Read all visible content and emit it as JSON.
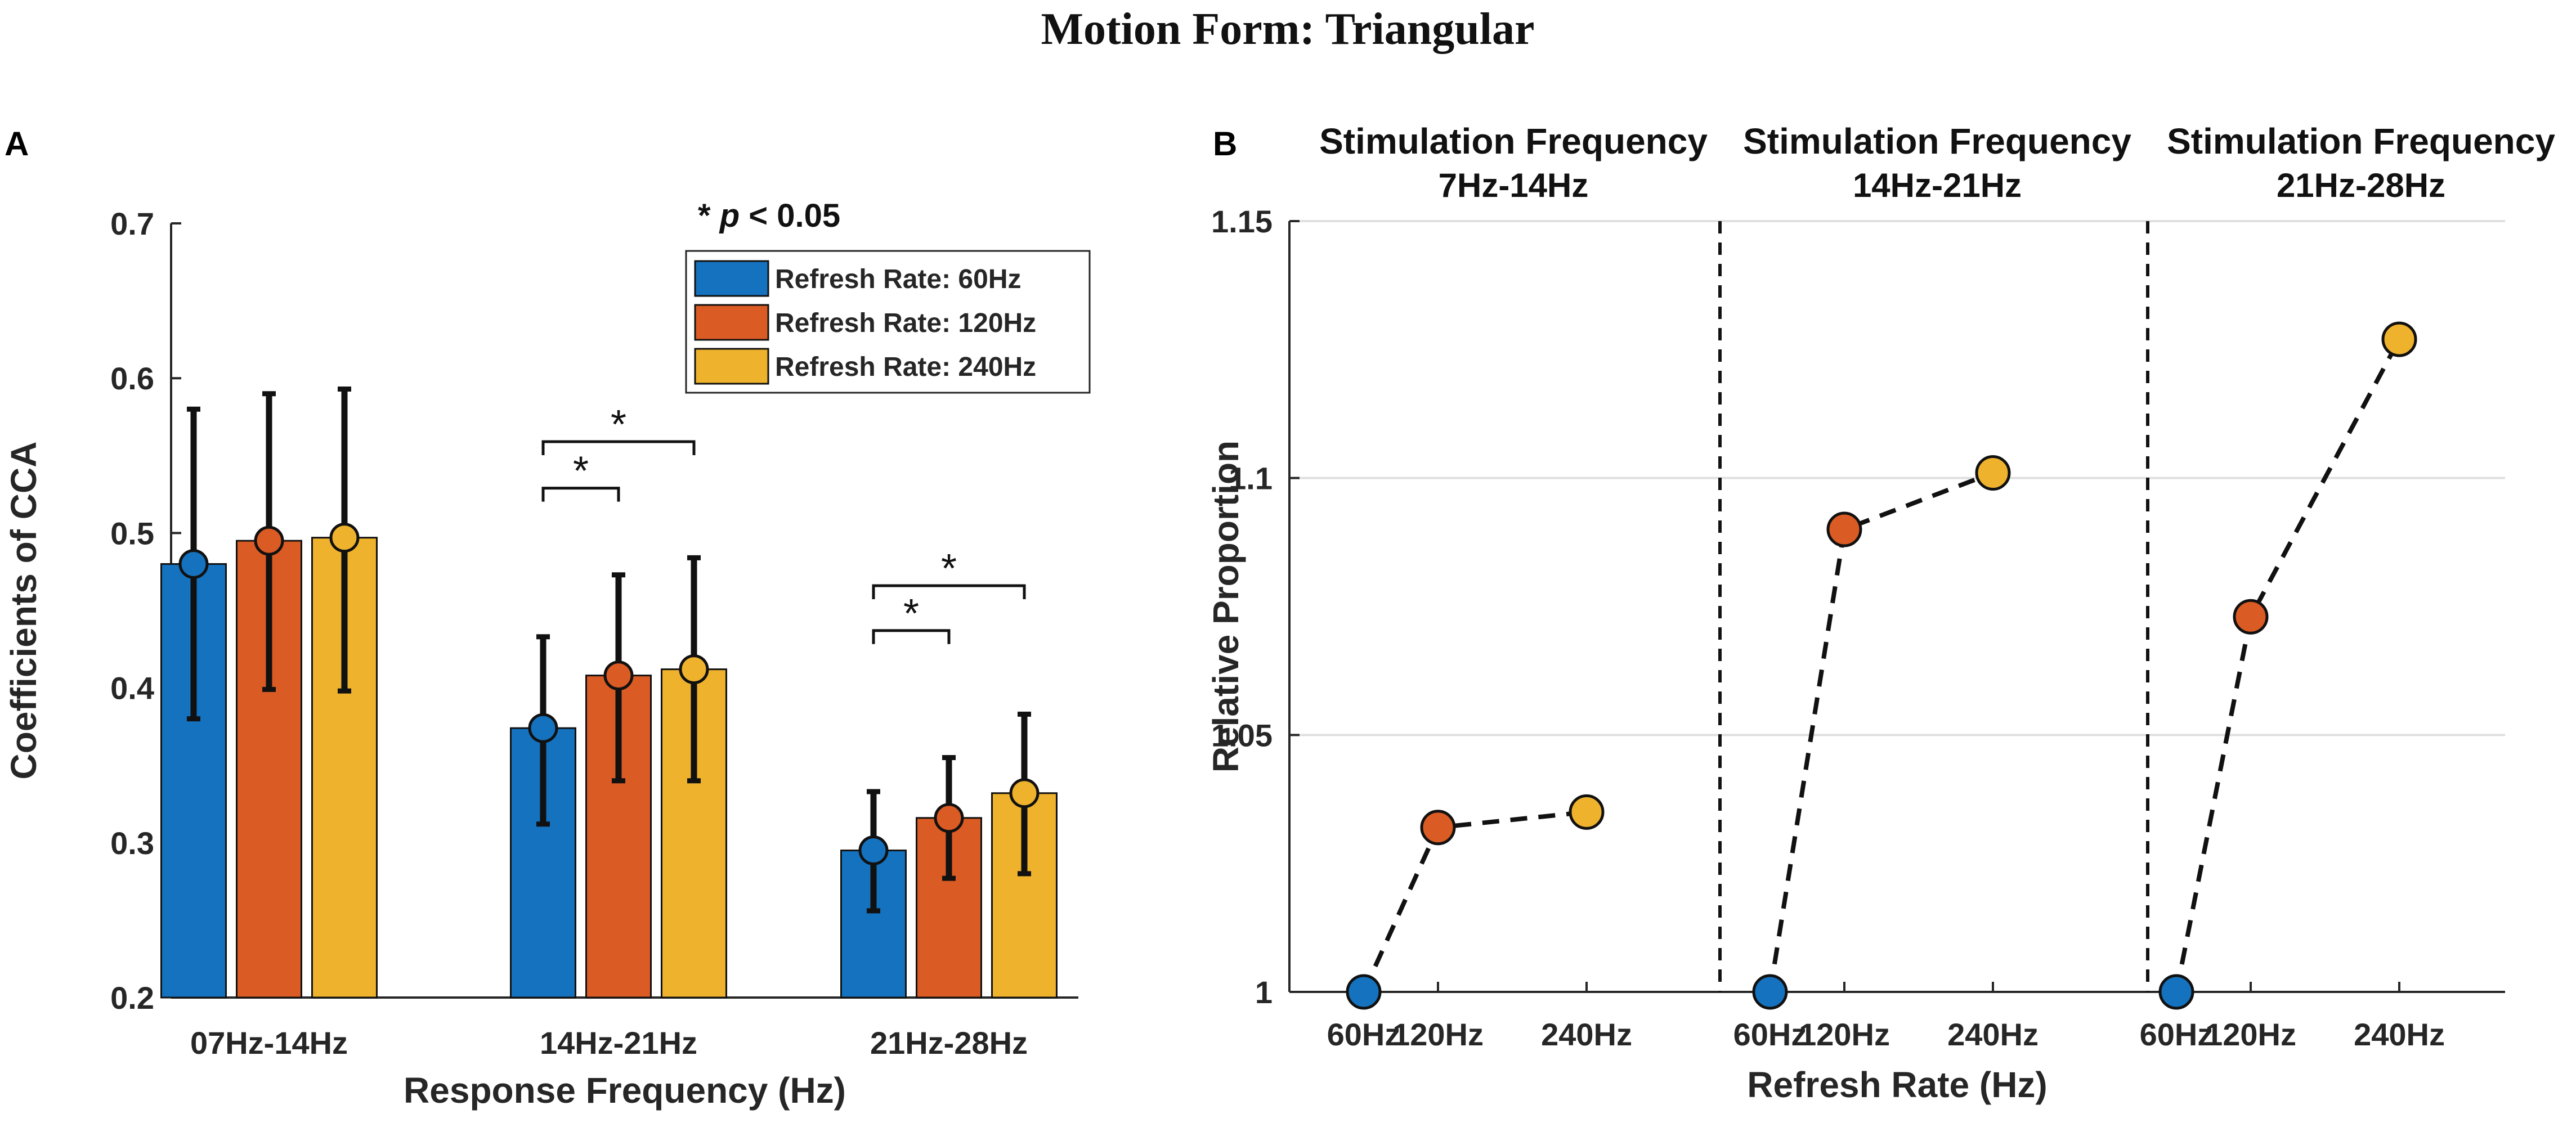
{
  "figure_title": "Motion Form: Triangular",
  "colors": {
    "rate_60": "#1572BE",
    "rate_120": "#DA5B23",
    "rate_240": "#EEB22D",
    "axis": "#262626",
    "grid": "#DFDFDF"
  },
  "chart_data": [
    {
      "panel_label": "A",
      "type": "bar",
      "title": "",
      "xlabel": "Response Frequency (Hz)",
      "ylabel": "Coefficients of CCA",
      "ylim": [
        0.2,
        0.7
      ],
      "yticks": [
        "0.2",
        "0.3",
        "0.4",
        "0.5",
        "0.6",
        "0.7"
      ],
      "categories": [
        "07Hz-14Hz",
        "14Hz-21Hz",
        "21Hz-28Hz"
      ],
      "series": [
        {
          "name": "Refresh Rate: 60Hz",
          "values": [
            0.48,
            0.374,
            0.295
          ],
          "err_low": [
            0.38,
            0.312,
            0.256
          ],
          "err_high": [
            0.58,
            0.433,
            0.333
          ]
        },
        {
          "name": "Refresh Rate: 120Hz",
          "values": [
            0.495,
            0.408,
            0.316
          ],
          "err_low": [
            0.399,
            0.34,
            0.277
          ],
          "err_high": [
            0.59,
            0.473,
            0.355
          ]
        },
        {
          "name": "Refresh Rate: 240Hz",
          "values": [
            0.497,
            0.412,
            0.332
          ],
          "err_low": [
            0.398,
            0.34,
            0.28
          ],
          "err_high": [
            0.593,
            0.484,
            0.383
          ]
        }
      ],
      "significance_note": {
        "prefix": "* ",
        "italic": "p",
        "suffix": " < 0.05"
      },
      "significance": [
        {
          "category": 1,
          "from_series": 0,
          "to_series": 1,
          "label": "*",
          "y": 0.529
        },
        {
          "category": 1,
          "from_series": 0,
          "to_series": 2,
          "label": "*",
          "y": 0.559
        },
        {
          "category": 2,
          "from_series": 0,
          "to_series": 1,
          "label": "*",
          "y": 0.437
        },
        {
          "category": 2,
          "from_series": 0,
          "to_series": 2,
          "label": "*",
          "y": 0.466
        }
      ],
      "legend": {
        "position": "top-right",
        "entries": [
          "Refresh Rate: 60Hz",
          "Refresh Rate: 120Hz",
          "Refresh Rate: 240Hz"
        ]
      },
      "grid": false
    },
    {
      "panel_label": "B",
      "type": "line",
      "title": "",
      "xlabel": "Refresh Rate (Hz)",
      "ylabel": "Relative Proportion",
      "ylim": [
        1.0,
        1.15
      ],
      "yticks": [
        "1",
        "1.05",
        "1.1",
        "1.15"
      ],
      "grid": true,
      "groups": [
        {
          "header": [
            "Stimulation Frequency",
            "7Hz-14Hz"
          ],
          "x": [
            60,
            120,
            240
          ],
          "xticks": [
            "60Hz",
            "120Hz",
            "240Hz"
          ],
          "y": [
            1.0,
            1.032,
            1.035
          ]
        },
        {
          "header": [
            "Stimulation Frequency",
            "14Hz-21Hz"
          ],
          "x": [
            60,
            120,
            240
          ],
          "xticks": [
            "60Hz",
            "120Hz",
            "240Hz"
          ],
          "y": [
            1.0,
            1.09,
            1.101
          ]
        },
        {
          "header": [
            "Stimulation Frequency",
            "21Hz-28Hz"
          ],
          "x": [
            60,
            120,
            240
          ],
          "xticks": [
            "60Hz",
            "120Hz",
            "240Hz"
          ],
          "y": [
            1.0,
            1.073,
            1.127
          ]
        }
      ]
    }
  ]
}
